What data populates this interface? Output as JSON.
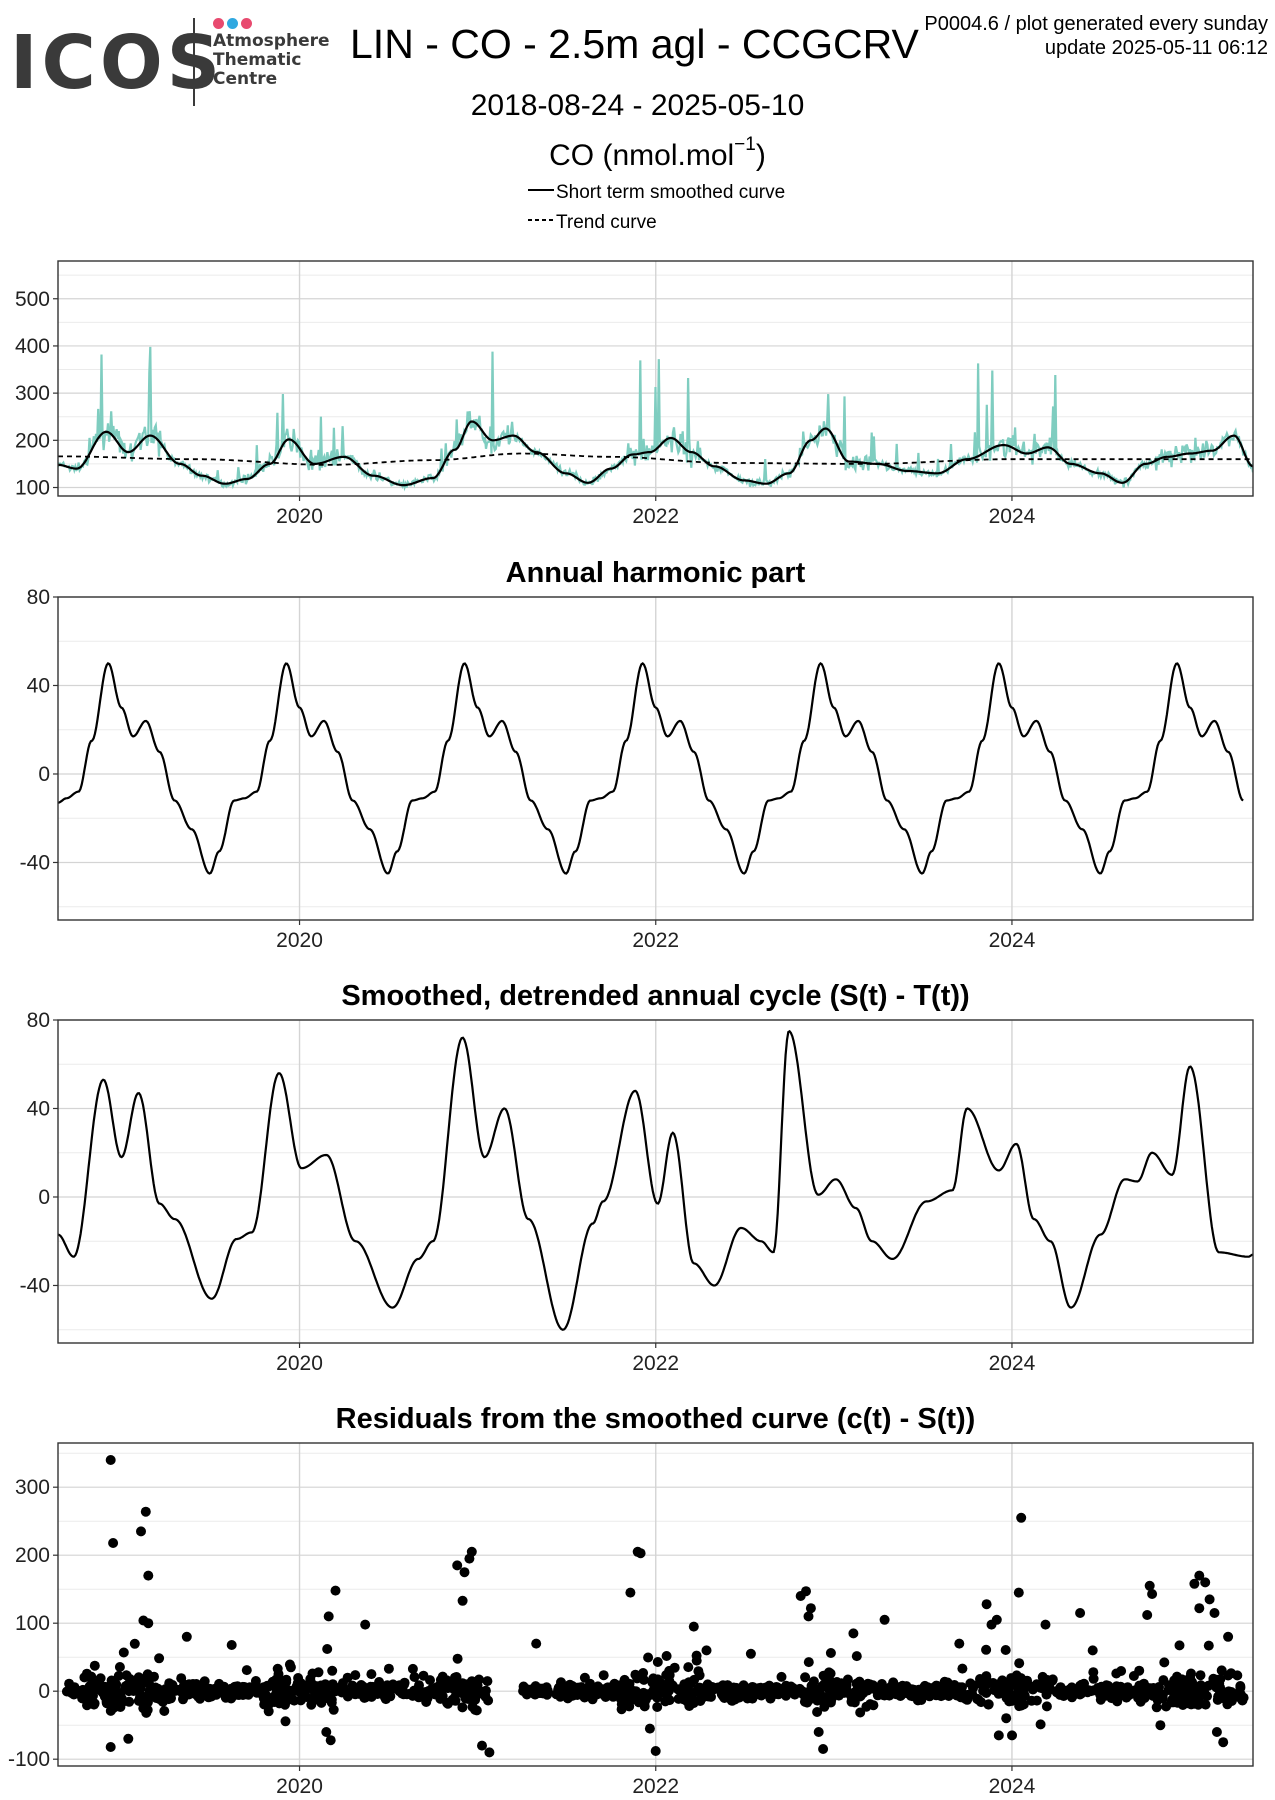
{
  "header": {
    "logo_text": "ICOS",
    "logo_lines": [
      "Atmosphere",
      "Thematic",
      "Centre"
    ],
    "logo_dot_colors": [
      "#e84a6f",
      "#2fa8e0",
      "#e84a6f"
    ],
    "title": "LIN - CO - 2.5m agl - CCGCRV",
    "note_line1": "P0004.6 / plot generated every sunday",
    "note_line2": "update  2025-05-11 06:12",
    "subtitle": "2018-08-24 - 2025-05-10",
    "unit_main": "CO (nmol.mol",
    "unit_sup": "−1",
    "unit_close": ")",
    "legend": [
      {
        "label": "Short term smoothed curve",
        "style": "solid"
      },
      {
        "label": "Trend curve",
        "style": "dashed"
      }
    ]
  },
  "colors": {
    "raw": "#7fcdc0",
    "line": "#000000",
    "grid_major": "#d4d4d4",
    "grid_minor": "#ebebeb",
    "frame": "#333333"
  },
  "chart_data": [
    {
      "id": "concentration",
      "type": "line",
      "title": "",
      "xlim": [
        "2018-08-24",
        "2025-05-10"
      ],
      "ylim": [
        82,
        580
      ],
      "x_ticks": [
        "2020",
        "2022",
        "2024"
      ],
      "y_ticks": [
        100,
        200,
        300,
        400,
        500
      ],
      "series": [
        {
          "name": "Short term smoothed curve",
          "style": "solid",
          "x": [
            "2018-08-24",
            "2018-10-01",
            "2018-12-01",
            "2019-01-15",
            "2019-03-01",
            "2019-05-01",
            "2019-06-15",
            "2019-08-01",
            "2019-09-15",
            "2019-11-01",
            "2019-12-10",
            "2020-02-01",
            "2020-04-01",
            "2020-06-01",
            "2020-08-01",
            "2020-10-01",
            "2020-11-15",
            "2020-12-20",
            "2021-02-01",
            "2021-03-15",
            "2021-05-01",
            "2021-07-01",
            "2021-08-15",
            "2021-10-01",
            "2021-11-15",
            "2021-12-20",
            "2022-02-01",
            "2022-03-15",
            "2022-05-01",
            "2022-07-01",
            "2022-08-15",
            "2022-10-01",
            "2022-11-15",
            "2022-12-15",
            "2023-02-01",
            "2023-04-01",
            "2023-06-01",
            "2023-08-01",
            "2023-10-01",
            "2023-12-15",
            "2024-02-01",
            "2024-03-15",
            "2024-05-01",
            "2024-07-01",
            "2024-08-15",
            "2024-10-01",
            "2024-11-15",
            "2025-01-01",
            "2025-02-15",
            "2025-04-01",
            "2025-05-10"
          ],
          "values": [
            148,
            140,
            218,
            175,
            210,
            150,
            125,
            108,
            118,
            150,
            202,
            150,
            165,
            125,
            105,
            120,
            180,
            240,
            200,
            210,
            175,
            130,
            110,
            140,
            170,
            175,
            205,
            175,
            145,
            115,
            108,
            130,
            200,
            225,
            155,
            150,
            135,
            130,
            160,
            190,
            172,
            185,
            150,
            130,
            110,
            150,
            165,
            172,
            178,
            210,
            145
          ]
        },
        {
          "name": "Trend curve",
          "style": "dashed",
          "x": [
            "2018-08-24",
            "2019-06-01",
            "2020-03-01",
            "2020-10-01",
            "2021-04-01",
            "2021-10-01",
            "2022-06-01",
            "2023-03-01",
            "2024-01-01",
            "2025-05-10"
          ],
          "values": [
            166,
            160,
            148,
            158,
            172,
            165,
            152,
            150,
            160,
            160
          ]
        }
      ]
    },
    {
      "id": "harmonic",
      "type": "line",
      "title": "Annual harmonic part",
      "xlim": [
        "2018-08-24",
        "2025-05-10"
      ],
      "ylim": [
        -66,
        80
      ],
      "x_ticks": [
        "2020",
        "2022",
        "2024"
      ],
      "y_ticks": [
        -40,
        0,
        40,
        80
      ],
      "series": [
        {
          "name": "Annual harmonic part",
          "style": "solid",
          "x": [
            "2018-08-24",
            "2018-09-10",
            "2018-10-05",
            "2018-11-01",
            "2018-12-05",
            "2019-01-01",
            "2019-01-25",
            "2019-02-20",
            "2019-03-20",
            "2019-04-20",
            "2019-05-25",
            "2019-07-01",
            "2019-07-20",
            "2019-08-20",
            "2019-09-10",
            "2019-10-05"
          ],
          "values": [
            -13,
            -11,
            -8,
            15,
            50,
            30,
            17,
            24,
            10,
            -12,
            -25,
            -45,
            -35,
            -12,
            -11,
            -8
          ],
          "annual_repeat_until": "2025-05-10"
        }
      ]
    },
    {
      "id": "detrended",
      "type": "line",
      "title": "Smoothed, detrended annual cycle (S(t) - T(t))",
      "xlim": [
        "2018-08-24",
        "2025-05-10"
      ],
      "ylim": [
        -66,
        80
      ],
      "x_ticks": [
        "2020",
        "2022",
        "2024"
      ],
      "y_ticks": [
        -40,
        0,
        40,
        80
      ],
      "series": [
        {
          "name": "Smoothed, detrended annual cycle (S(t) - T(t))",
          "style": "solid",
          "x": [
            "2018-08-24",
            "2018-09-25",
            "2018-11-25",
            "2019-01-01",
            "2019-02-05",
            "2019-03-20",
            "2019-04-20",
            "2019-07-05",
            "2019-08-25",
            "2019-09-25",
            "2019-11-20",
            "2020-01-05",
            "2020-02-25",
            "2020-04-25",
            "2020-07-10",
            "2020-09-01",
            "2020-10-01",
            "2020-12-01",
            "2021-01-15",
            "2021-02-25",
            "2021-04-15",
            "2021-06-25",
            "2021-08-25",
            "2021-09-15",
            "2021-11-20",
            "2022-01-05",
            "2022-02-05",
            "2022-03-20",
            "2022-05-01",
            "2022-06-25",
            "2022-08-05",
            "2022-08-30",
            "2022-10-01",
            "2022-11-30",
            "2023-01-05",
            "2023-02-15",
            "2023-03-20",
            "2023-05-01",
            "2023-07-10",
            "2023-09-01",
            "2023-10-01",
            "2023-12-05",
            "2024-01-10",
            "2024-02-15",
            "2024-03-20",
            "2024-05-01",
            "2024-07-01",
            "2024-08-20",
            "2024-09-15",
            "2024-10-15",
            "2024-11-25",
            "2025-01-01",
            "2025-03-01",
            "2025-05-01",
            "2025-05-10"
          ],
          "values": [
            -17,
            -27,
            53,
            18,
            47,
            -3,
            -10,
            -46,
            -19,
            -16,
            56,
            13,
            19,
            -20,
            -50,
            -28,
            -20,
            72,
            18,
            40,
            -10,
            -60,
            -12,
            -2,
            48,
            -3,
            29,
            -30,
            -40,
            -14,
            -20,
            -25,
            75,
            1,
            8,
            -5,
            -20,
            -28,
            -2,
            3,
            40,
            12,
            24,
            -10,
            -20,
            -50,
            -17,
            8,
            7,
            20,
            10,
            59,
            -25,
            -27,
            -26
          ]
        }
      ]
    },
    {
      "id": "residuals",
      "type": "scatter",
      "title": "Residuals from the smoothed curve (c(t) - S(t))",
      "xlim": [
        "2018-08-24",
        "2025-05-10"
      ],
      "ylim": [
        -110,
        365
      ],
      "x_ticks": [
        "2020",
        "2022",
        "2024"
      ],
      "y_ticks": [
        -100,
        0,
        100,
        200,
        300
      ],
      "points": [
        [
          "2018-12-10",
          340
        ],
        [
          "2018-12-15",
          218
        ],
        [
          "2019-02-10",
          235
        ],
        [
          "2019-02-20",
          264
        ],
        [
          "2019-02-25",
          170
        ],
        [
          "2019-02-15",
          104
        ],
        [
          "2019-02-25",
          100
        ],
        [
          "2020-11-20",
          185
        ],
        [
          "2020-12-05",
          175
        ],
        [
          "2020-12-20",
          205
        ],
        [
          "2020-12-15",
          195
        ],
        [
          "2020-12-01",
          133
        ],
        [
          "2021-11-25",
          205
        ],
        [
          "2021-12-01",
          203
        ],
        [
          "2021-11-10",
          145
        ],
        [
          "2022-03-20",
          95
        ],
        [
          "2022-10-25",
          140
        ],
        [
          "2022-11-05",
          147
        ],
        [
          "2022-11-15",
          122
        ],
        [
          "2022-11-10",
          110
        ],
        [
          "2023-04-15",
          105
        ],
        [
          "2023-11-10",
          128
        ],
        [
          "2023-11-20",
          98
        ],
        [
          "2023-12-01",
          105
        ],
        [
          "2024-01-20",
          255
        ],
        [
          "2024-01-15",
          145
        ],
        [
          "2024-05-20",
          115
        ],
        [
          "2024-03-10",
          98
        ],
        [
          "2024-10-10",
          155
        ],
        [
          "2024-10-15",
          143
        ],
        [
          "2024-10-05",
          112
        ],
        [
          "2025-01-10",
          158
        ],
        [
          "2025-01-20",
          170
        ],
        [
          "2025-02-01",
          160
        ],
        [
          "2025-02-10",
          135
        ],
        [
          "2025-02-20",
          115
        ],
        [
          "2025-01-20",
          122
        ],
        [
          "2025-03-20",
          80
        ],
        [
          "2023-02-10",
          85
        ],
        [
          "2022-04-15",
          60
        ],
        [
          "2019-08-15",
          68
        ],
        [
          "2020-03-15",
          148
        ],
        [
          "2020-03-01",
          110
        ],
        [
          "2020-05-15",
          98
        ],
        [
          "2021-05-01",
          70
        ],
        [
          "2023-09-15",
          70
        ],
        [
          "2019-05-15",
          80
        ],
        [
          "2022-07-15",
          55
        ],
        [
          "2024-06-15",
          60
        ],
        [
          "2021-01-25",
          -90
        ],
        [
          "2021-01-10",
          -80
        ],
        [
          "2018-12-10",
          -82
        ],
        [
          "2019-01-15",
          -70
        ],
        [
          "2022-01-01",
          -88
        ],
        [
          "2022-12-10",
          -85
        ],
        [
          "2022-12-01",
          -60
        ],
        [
          "2023-12-05",
          -65
        ],
        [
          "2024-01-01",
          -65
        ],
        [
          "2025-02-25",
          -60
        ],
        [
          "2025-03-10",
          -75
        ],
        [
          "2020-03-05",
          -72
        ],
        [
          "2020-02-25",
          -60
        ],
        [
          "2024-11-01",
          -50
        ],
        [
          "2021-12-20",
          -55
        ]
      ]
    }
  ]
}
